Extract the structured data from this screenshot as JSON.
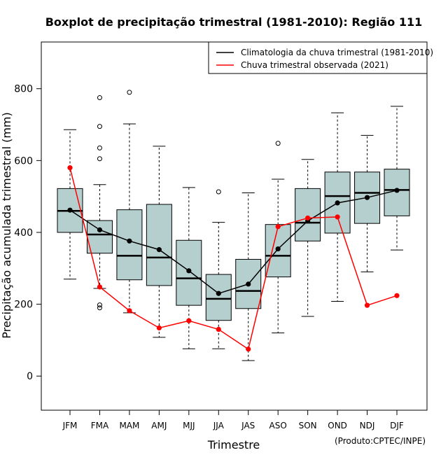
{
  "chart_data": {
    "type": "boxplot",
    "title": "Boxplot de precipitação trimestral (1981-2010): Região 111",
    "xlabel": "Trimestre",
    "ylabel": "Precipitação acumulada trimestral (mm)",
    "ylim": [
      -95,
      930
    ],
    "yticks": [
      0,
      200,
      400,
      600,
      800
    ],
    "categories": [
      "JFM",
      "FMA",
      "MAM",
      "AMJ",
      "MJJ",
      "JJA",
      "JAS",
      "ASO",
      "SON",
      "OND",
      "NDJ",
      "DJF"
    ],
    "boxes": [
      {
        "category": "JFM",
        "whisker_low": 270,
        "q1": 400,
        "median": 460,
        "q3": 522,
        "whisker_high": 686,
        "outliers": []
      },
      {
        "category": "FMA",
        "whisker_low": 244,
        "q1": 342,
        "median": 394,
        "q3": 433,
        "whisker_high": 533,
        "outliers": [
          775,
          695,
          635,
          605,
          198,
          190
        ]
      },
      {
        "category": "MAM",
        "whisker_low": 176,
        "q1": 268,
        "median": 335,
        "q3": 463,
        "whisker_high": 702,
        "outliers": [
          790
        ]
      },
      {
        "category": "AMJ",
        "whisker_low": 108,
        "q1": 252,
        "median": 330,
        "q3": 478,
        "whisker_high": 640,
        "outliers": []
      },
      {
        "category": "MJJ",
        "whisker_low": 76,
        "q1": 197,
        "median": 272,
        "q3": 378,
        "whisker_high": 525,
        "outliers": []
      },
      {
        "category": "JJA",
        "whisker_low": 76,
        "q1": 155,
        "median": 215,
        "q3": 283,
        "whisker_high": 428,
        "outliers": [
          513
        ]
      },
      {
        "category": "JAS",
        "whisker_low": 43,
        "q1": 188,
        "median": 237,
        "q3": 325,
        "whisker_high": 510,
        "outliers": []
      },
      {
        "category": "ASO",
        "whisker_low": 120,
        "q1": 276,
        "median": 335,
        "q3": 422,
        "whisker_high": 548,
        "outliers": [
          648
        ]
      },
      {
        "category": "SON",
        "whisker_low": 166,
        "q1": 376,
        "median": 427,
        "q3": 522,
        "whisker_high": 603,
        "outliers": []
      },
      {
        "category": "OND",
        "whisker_low": 208,
        "q1": 398,
        "median": 501,
        "q3": 568,
        "whisker_high": 733,
        "outliers": []
      },
      {
        "category": "NDJ",
        "whisker_low": 290,
        "q1": 425,
        "median": 510,
        "q3": 568,
        "whisker_high": 670,
        "outliers": []
      },
      {
        "category": "DJF",
        "whisker_low": 351,
        "q1": 446,
        "median": 518,
        "q3": 576,
        "whisker_high": 751,
        "outliers": []
      }
    ],
    "series": [
      {
        "name": "Climatologia da chuva trimestral (1981-2010)",
        "color": "#000000",
        "values": [
          462,
          407,
          376,
          352,
          293,
          230,
          256,
          354,
          432,
          482,
          497,
          517
        ]
      },
      {
        "name": "Chuva trimestral observada (2021)",
        "color": "#ff0000",
        "values": [
          580,
          248,
          182,
          134,
          154,
          130,
          75,
          416,
          440,
          443,
          197,
          224
        ]
      }
    ],
    "legend_position": "top-right",
    "box_fill": "#b5cece"
  },
  "footer": {
    "credit": "(Produto:CPTEC/INPE)"
  }
}
